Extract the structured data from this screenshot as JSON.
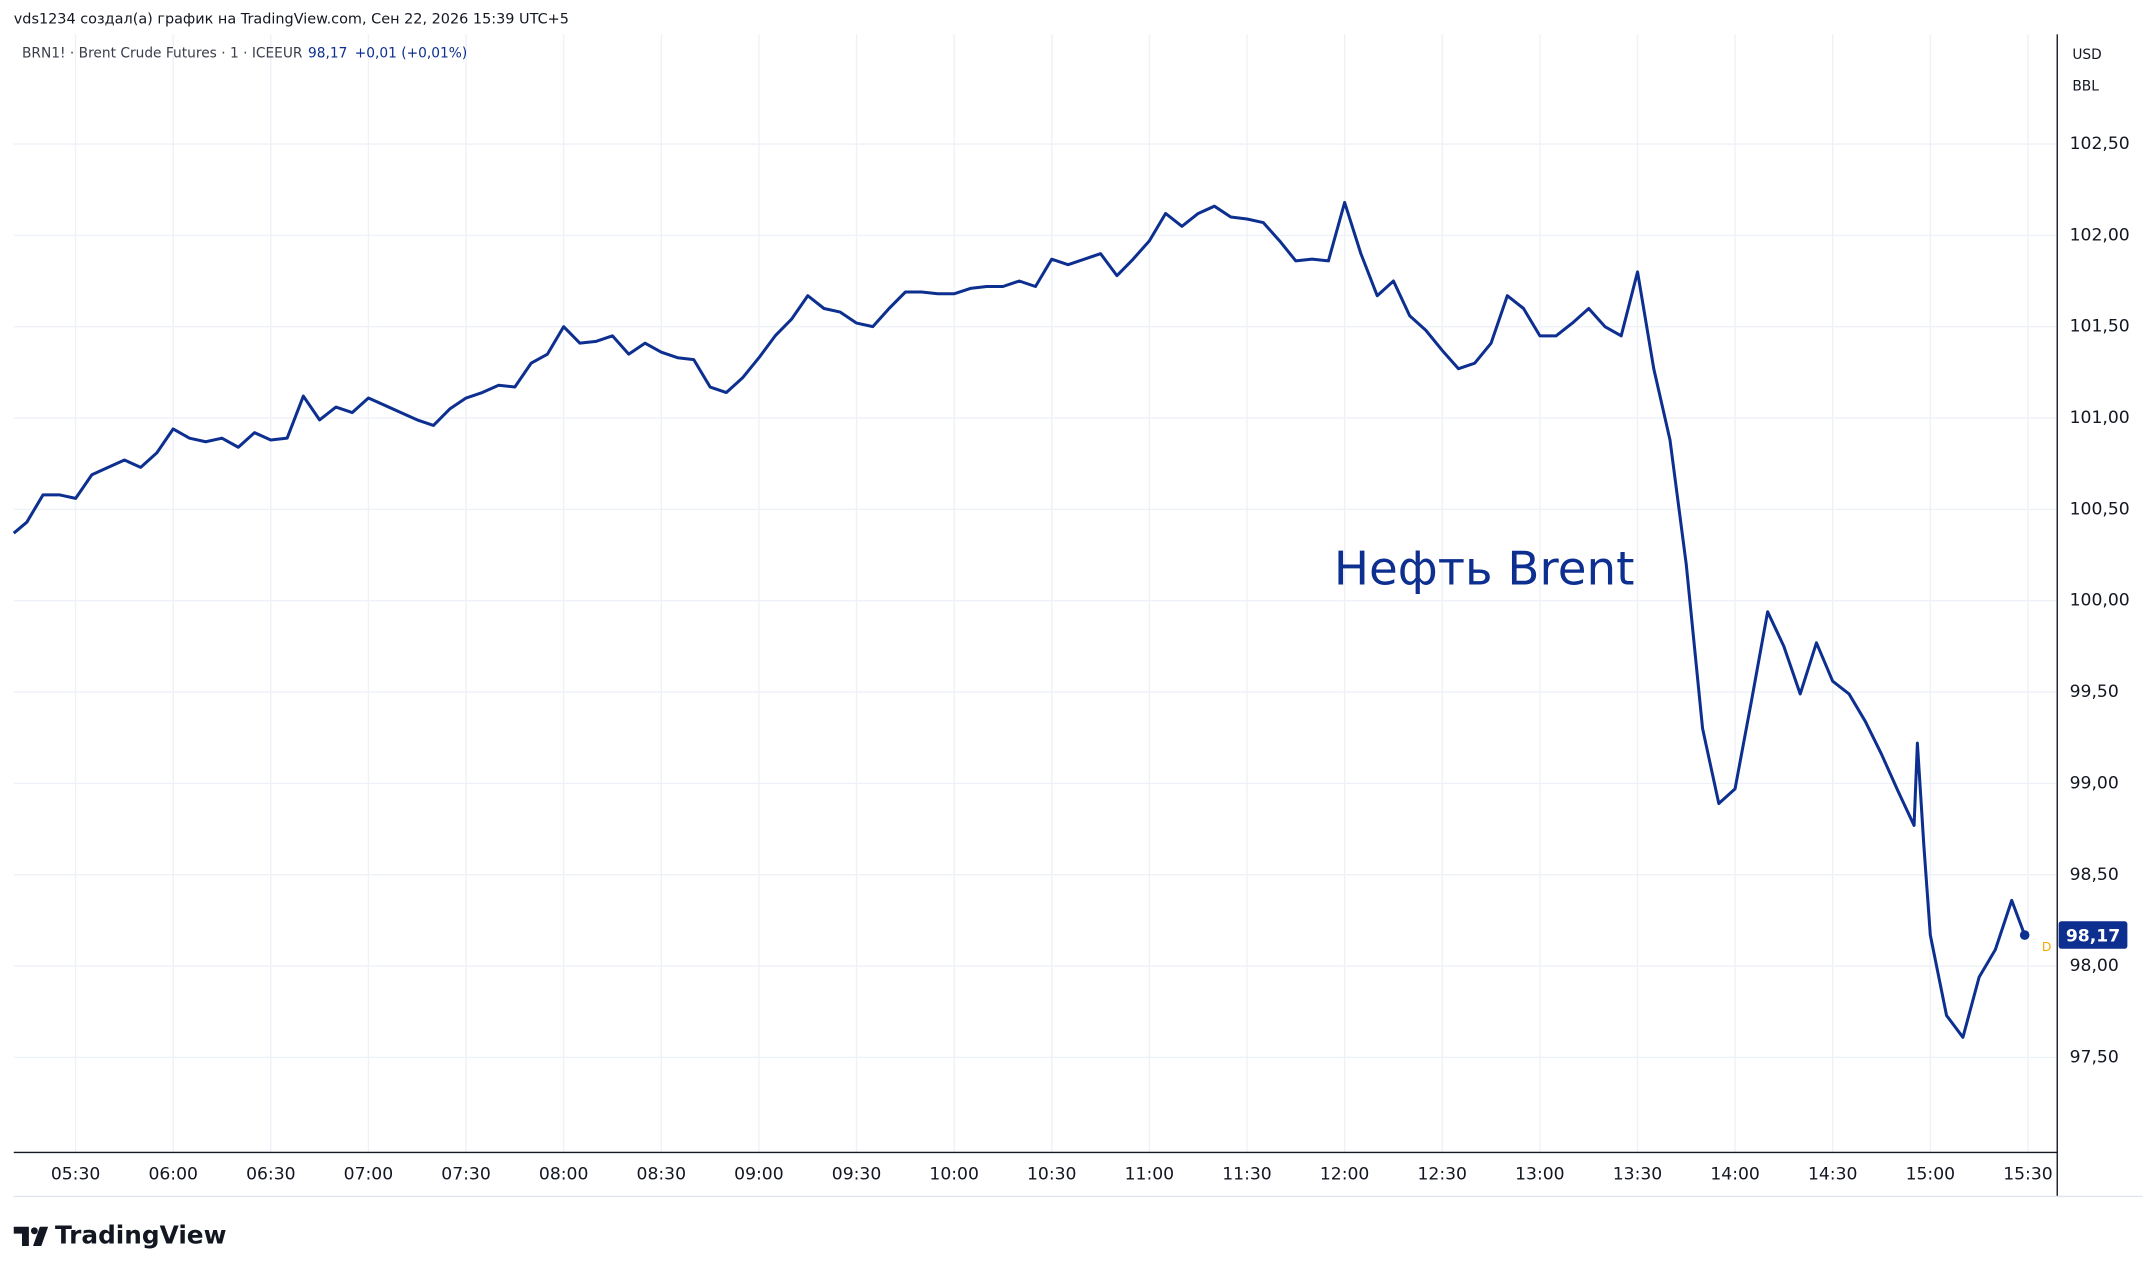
{
  "header": "vds1234 создал(а) график на TradingView.com, Сен 22, 2026 15:39 UTC+5",
  "logo": "TradingView",
  "chart_data": {
    "type": "line",
    "symbol": "BRN1! · Brent Crude Futures · 1 · ICEEUR",
    "price_label": "98,17",
    "change": "+0,01 (+0,01%)",
    "currency": "USD",
    "unit": "BBL",
    "annotation": "Нефть Brent",
    "marker": "D",
    "x": [
      "05:11",
      "05:15",
      "05:20",
      "05:25",
      "05:30",
      "05:35",
      "05:40",
      "05:45",
      "05:50",
      "05:55",
      "06:00",
      "06:05",
      "06:10",
      "06:15",
      "06:20",
      "06:25",
      "06:30",
      "06:35",
      "06:40",
      "06:45",
      "06:50",
      "06:55",
      "07:00",
      "07:05",
      "07:10",
      "07:15",
      "07:20",
      "07:25",
      "07:30",
      "07:35",
      "07:40",
      "07:45",
      "07:50",
      "07:55",
      "08:00",
      "08:05",
      "08:10",
      "08:15",
      "08:20",
      "08:25",
      "08:30",
      "08:35",
      "08:40",
      "08:45",
      "08:50",
      "08:55",
      "09:00",
      "09:05",
      "09:10",
      "09:15",
      "09:20",
      "09:25",
      "09:30",
      "09:35",
      "09:40",
      "09:45",
      "09:50",
      "09:55",
      "10:00",
      "10:05",
      "10:10",
      "10:15",
      "10:20",
      "10:25",
      "10:30",
      "10:35",
      "10:40",
      "10:45",
      "10:50",
      "10:55",
      "11:00",
      "11:05",
      "11:10",
      "11:15",
      "11:20",
      "11:25",
      "11:30",
      "11:35",
      "11:40",
      "11:45",
      "11:50",
      "11:55",
      "12:00",
      "12:05",
      "12:10",
      "12:15",
      "12:20",
      "12:25",
      "12:30",
      "12:35",
      "12:40",
      "12:45",
      "12:50",
      "12:55",
      "13:00",
      "13:05",
      "13:10",
      "13:15",
      "13:20",
      "13:25",
      "13:30",
      "13:35",
      "13:40",
      "13:45",
      "13:50",
      "13:55",
      "14:00",
      "14:05",
      "14:10",
      "14:15",
      "14:20",
      "14:25",
      "14:30",
      "14:35",
      "14:40",
      "14:45",
      "14:50",
      "14:55",
      "14:56",
      "14:58",
      "15:00",
      "15:05",
      "15:10",
      "15:15",
      "15:20",
      "15:25",
      "15:29"
    ],
    "series": [
      {
        "name": "BRN1!",
        "color": "#0d2f8f",
        "values": [
          100.37,
          100.43,
          100.58,
          100.58,
          100.56,
          100.69,
          100.73,
          100.77,
          100.73,
          100.81,
          100.94,
          100.89,
          100.87,
          100.89,
          100.84,
          100.92,
          100.88,
          100.89,
          101.12,
          100.99,
          101.06,
          101.03,
          101.11,
          101.07,
          101.03,
          100.99,
          100.96,
          101.05,
          101.11,
          101.14,
          101.18,
          101.17,
          101.3,
          101.35,
          101.5,
          101.41,
          101.42,
          101.45,
          101.35,
          101.41,
          101.36,
          101.33,
          101.32,
          101.17,
          101.14,
          101.22,
          101.33,
          101.45,
          101.54,
          101.67,
          101.6,
          101.58,
          101.52,
          101.5,
          101.6,
          101.69,
          101.69,
          101.68,
          101.68,
          101.71,
          101.72,
          101.72,
          101.75,
          101.72,
          101.87,
          101.84,
          101.87,
          101.9,
          101.78,
          101.87,
          101.97,
          102.12,
          102.05,
          102.12,
          102.16,
          102.1,
          102.09,
          102.07,
          101.97,
          101.86,
          101.87,
          101.86,
          102.18,
          101.9,
          101.67,
          101.75,
          101.56,
          101.48,
          101.37,
          101.27,
          101.3,
          101.41,
          101.67,
          101.6,
          101.45,
          101.45,
          101.52,
          101.6,
          101.5,
          101.45,
          101.8,
          101.27,
          100.88,
          100.2,
          99.3,
          98.89,
          98.97,
          99.45,
          99.94,
          99.75,
          99.49,
          99.77,
          99.56,
          99.49,
          99.34,
          99.16,
          98.96,
          98.77,
          99.22,
          98.66,
          98.17,
          97.73,
          97.61,
          97.94,
          98.09,
          98.36,
          98.17
        ]
      }
    ],
    "xlim": [
      "05:11",
      "15:39"
    ],
    "xticks": [
      "05:30",
      "06:00",
      "06:30",
      "07:00",
      "07:30",
      "08:00",
      "08:30",
      "09:00",
      "09:30",
      "10:00",
      "10:30",
      "11:00",
      "11:30",
      "12:00",
      "12:30",
      "13:00",
      "13:30",
      "14:00",
      "14:30",
      "15:00",
      "15:30"
    ],
    "ylim": [
      96.98,
      103.1
    ],
    "yticks": [
      {
        "value": 97.5,
        "label": "97,50"
      },
      {
        "value": 98,
        "label": "98,00"
      },
      {
        "value": 98.5,
        "label": "98,50"
      },
      {
        "value": 99,
        "label": "99,00"
      },
      {
        "value": 99.5,
        "label": "99,50"
      },
      {
        "value": 100,
        "label": "100,00"
      },
      {
        "value": 100.5,
        "label": "100,50"
      },
      {
        "value": 101,
        "label": "101,00"
      },
      {
        "value": 101.5,
        "label": "101,50"
      },
      {
        "value": 102,
        "label": "102,00"
      },
      {
        "value": 102.5,
        "label": "102,50"
      }
    ],
    "grid": true
  }
}
